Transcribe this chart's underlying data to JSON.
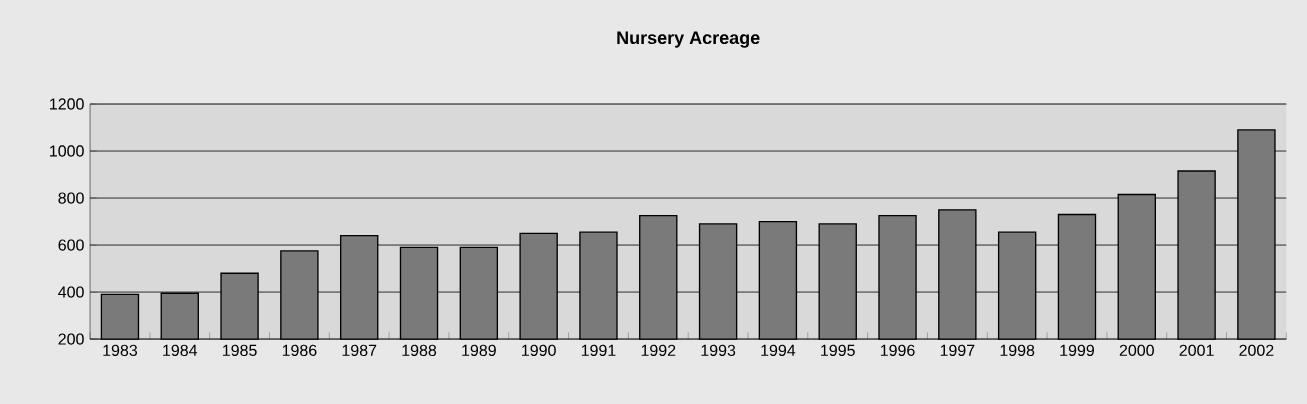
{
  "chart_data": {
    "type": "bar",
    "title": "Nursery Acreage",
    "categories": [
      "1983",
      "1984",
      "1985",
      "1986",
      "1987",
      "1988",
      "1989",
      "1990",
      "1991",
      "1992",
      "1993",
      "1994",
      "1995",
      "1996",
      "1997",
      "1998",
      "1999",
      "2000",
      "2001",
      "2002"
    ],
    "values": [
      390,
      395,
      480,
      575,
      640,
      590,
      590,
      650,
      655,
      725,
      690,
      700,
      690,
      725,
      750,
      655,
      730,
      815,
      915,
      1090
    ],
    "color": "#7a7a7a",
    "ylim": [
      200,
      1200
    ],
    "yticks": [
      200,
      400,
      600,
      800,
      1000,
      1200
    ],
    "grid": "y"
  }
}
